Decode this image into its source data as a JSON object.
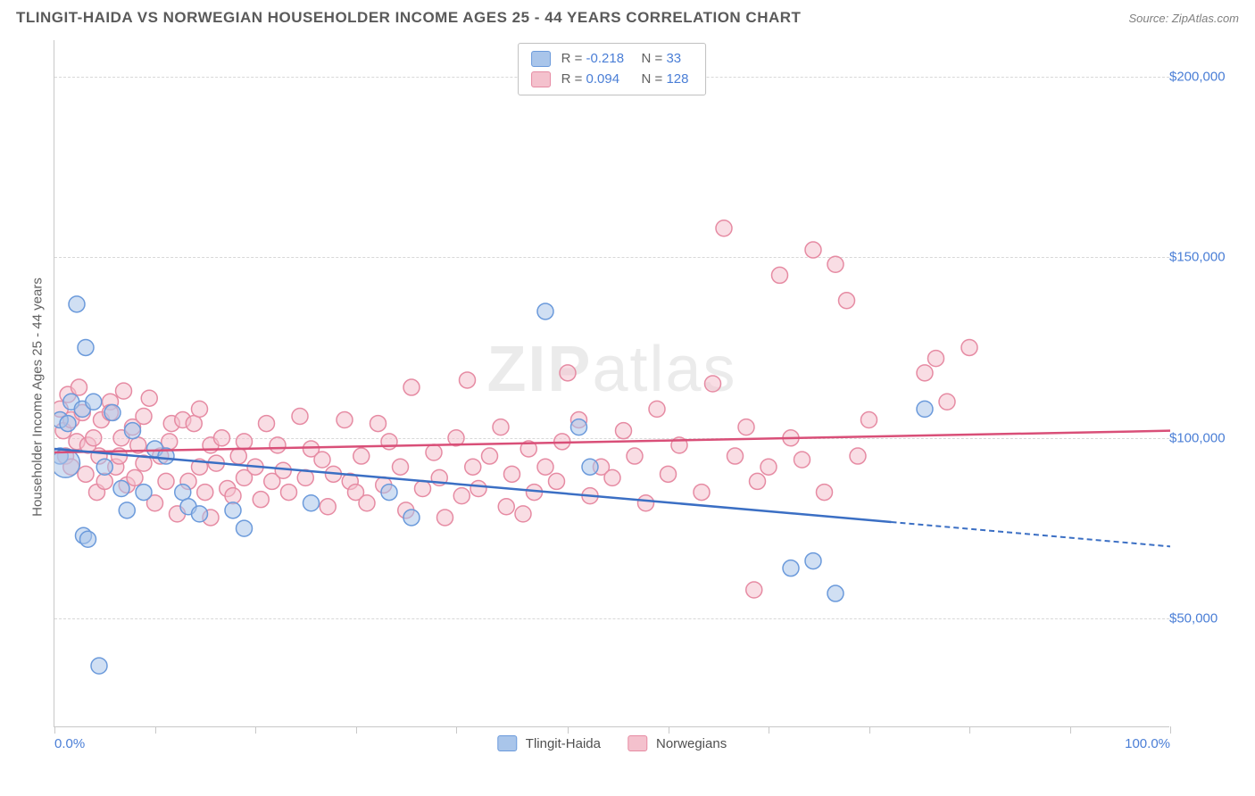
{
  "title": "TLINGIT-HAIDA VS NORWEGIAN HOUSEHOLDER INCOME AGES 25 - 44 YEARS CORRELATION CHART",
  "source": "Source: ZipAtlas.com",
  "watermark_1": "ZIP",
  "watermark_2": "atlas",
  "chart": {
    "type": "scatter",
    "ylabel": "Householder Income Ages 25 - 44 years",
    "xlim": [
      0,
      100
    ],
    "ylim": [
      20000,
      210000
    ],
    "xlabel_min": "0.0%",
    "xlabel_max": "100.0%",
    "background_color": "#ffffff",
    "grid_color": "#d8d8d8",
    "axis_color": "#c8c8c8",
    "ytick_values": [
      50000,
      100000,
      150000,
      200000
    ],
    "ytick_labels": [
      "$50,000",
      "$100,000",
      "$150,000",
      "$200,000"
    ],
    "xtick_positions": [
      0,
      9,
      18,
      27,
      36,
      46,
      55,
      64,
      73,
      82,
      91,
      100
    ],
    "marker_radius": 9,
    "marker_radius_large": 16,
    "title_fontsize": 17,
    "label_fontsize": 15,
    "series": [
      {
        "name": "Tlingit-Haida",
        "fill_color": "#a9c5ea",
        "fill_opacity": 0.55,
        "stroke_color": "#6b9adb",
        "line_color": "#3b6fc4",
        "R": "-0.218",
        "N": "33",
        "trend": {
          "x1": 0,
          "y1": 97000,
          "x2": 100,
          "y2": 70000,
          "solid_until_x": 75
        },
        "points": [
          [
            0.5,
            95000
          ],
          [
            0.5,
            105000
          ],
          [
            1,
            93000,
            16
          ],
          [
            1.2,
            104000
          ],
          [
            1.5,
            110000
          ],
          [
            2,
            137000
          ],
          [
            2.5,
            108000
          ],
          [
            2.6,
            73000
          ],
          [
            2.8,
            125000
          ],
          [
            3,
            72000
          ],
          [
            3.5,
            110000
          ],
          [
            4,
            37000
          ],
          [
            4.5,
            92000
          ],
          [
            5.2,
            107000
          ],
          [
            6,
            86000
          ],
          [
            6.5,
            80000
          ],
          [
            7,
            102000
          ],
          [
            8,
            85000
          ],
          [
            9,
            97000
          ],
          [
            10,
            95000
          ],
          [
            11.5,
            85000
          ],
          [
            12,
            81000
          ],
          [
            13,
            79000
          ],
          [
            16,
            80000
          ],
          [
            17,
            75000
          ],
          [
            23,
            82000
          ],
          [
            30,
            85000
          ],
          [
            32,
            78000
          ],
          [
            44,
            135000
          ],
          [
            47,
            103000
          ],
          [
            48,
            92000
          ],
          [
            66,
            64000
          ],
          [
            68,
            66000
          ],
          [
            70,
            57000
          ],
          [
            78,
            108000
          ]
        ]
      },
      {
        "name": "Norwegians",
        "fill_color": "#f4c1cd",
        "fill_opacity": 0.55,
        "stroke_color": "#e68ba3",
        "line_color": "#d94f78",
        "R": "0.094",
        "N": "128",
        "trend": {
          "x1": 0,
          "y1": 96000,
          "x2": 100,
          "y2": 102000,
          "solid_until_x": 100
        },
        "points": [
          [
            0.5,
            108000
          ],
          [
            0.8,
            102000
          ],
          [
            1,
            95000
          ],
          [
            1.2,
            112000
          ],
          [
            1.5,
            92000
          ],
          [
            1.5,
            105000
          ],
          [
            2,
            99000
          ],
          [
            2.2,
            114000
          ],
          [
            2.5,
            107000
          ],
          [
            2.8,
            90000
          ],
          [
            3,
            98000
          ],
          [
            3.5,
            100000
          ],
          [
            3.8,
            85000
          ],
          [
            4,
            95000
          ],
          [
            4.2,
            105000
          ],
          [
            4.5,
            88000
          ],
          [
            5,
            110000
          ],
          [
            5,
            107000
          ],
          [
            5.5,
            92000
          ],
          [
            5.8,
            95000
          ],
          [
            6,
            100000
          ],
          [
            6.2,
            113000
          ],
          [
            6.5,
            87000
          ],
          [
            7,
            103000
          ],
          [
            7.2,
            89000
          ],
          [
            7.5,
            98000
          ],
          [
            8,
            106000
          ],
          [
            8,
            93000
          ],
          [
            8.5,
            111000
          ],
          [
            9,
            82000
          ],
          [
            9.5,
            95000
          ],
          [
            10,
            88000
          ],
          [
            10.3,
            99000
          ],
          [
            10.5,
            104000
          ],
          [
            11,
            79000
          ],
          [
            11.5,
            105000
          ],
          [
            12,
            88000
          ],
          [
            12.5,
            104000
          ],
          [
            13,
            92000
          ],
          [
            13,
            108000
          ],
          [
            13.5,
            85000
          ],
          [
            14,
            98000
          ],
          [
            14,
            78000
          ],
          [
            14.5,
            93000
          ],
          [
            15,
            100000
          ],
          [
            15.5,
            86000
          ],
          [
            16,
            84000
          ],
          [
            16.5,
            95000
          ],
          [
            17,
            89000
          ],
          [
            17,
            99000
          ],
          [
            18,
            92000
          ],
          [
            18.5,
            83000
          ],
          [
            19,
            104000
          ],
          [
            19.5,
            88000
          ],
          [
            20,
            98000
          ],
          [
            20.5,
            91000
          ],
          [
            21,
            85000
          ],
          [
            22,
            106000
          ],
          [
            22.5,
            89000
          ],
          [
            23,
            97000
          ],
          [
            24,
            94000
          ],
          [
            24.5,
            81000
          ],
          [
            25,
            90000
          ],
          [
            26,
            105000
          ],
          [
            26.5,
            88000
          ],
          [
            27,
            85000
          ],
          [
            27.5,
            95000
          ],
          [
            28,
            82000
          ],
          [
            29,
            104000
          ],
          [
            29.5,
            87000
          ],
          [
            30,
            99000
          ],
          [
            31,
            92000
          ],
          [
            31.5,
            80000
          ],
          [
            32,
            114000
          ],
          [
            33,
            86000
          ],
          [
            34,
            96000
          ],
          [
            34.5,
            89000
          ],
          [
            35,
            78000
          ],
          [
            36,
            100000
          ],
          [
            36.5,
            84000
          ],
          [
            37,
            116000
          ],
          [
            37.5,
            92000
          ],
          [
            38,
            86000
          ],
          [
            39,
            95000
          ],
          [
            40,
            103000
          ],
          [
            40.5,
            81000
          ],
          [
            41,
            90000
          ],
          [
            42,
            79000
          ],
          [
            42.5,
            97000
          ],
          [
            43,
            85000
          ],
          [
            44,
            92000
          ],
          [
            45,
            88000
          ],
          [
            45.5,
            99000
          ],
          [
            46,
            118000
          ],
          [
            47,
            105000
          ],
          [
            48,
            84000
          ],
          [
            49,
            92000
          ],
          [
            50,
            89000
          ],
          [
            51,
            102000
          ],
          [
            52,
            95000
          ],
          [
            53,
            82000
          ],
          [
            54,
            108000
          ],
          [
            55,
            90000
          ],
          [
            56,
            98000
          ],
          [
            58,
            85000
          ],
          [
            59,
            115000
          ],
          [
            60,
            158000
          ],
          [
            61,
            95000
          ],
          [
            62,
            103000
          ],
          [
            62.7,
            58000
          ],
          [
            63,
            88000
          ],
          [
            64,
            92000
          ],
          [
            65,
            145000
          ],
          [
            66,
            100000
          ],
          [
            67,
            94000
          ],
          [
            68,
            152000
          ],
          [
            69,
            85000
          ],
          [
            70,
            148000
          ],
          [
            71,
            138000
          ],
          [
            72,
            95000
          ],
          [
            73,
            105000
          ],
          [
            78,
            118000
          ],
          [
            79,
            122000
          ],
          [
            80,
            110000
          ],
          [
            82,
            125000
          ]
        ]
      }
    ]
  }
}
